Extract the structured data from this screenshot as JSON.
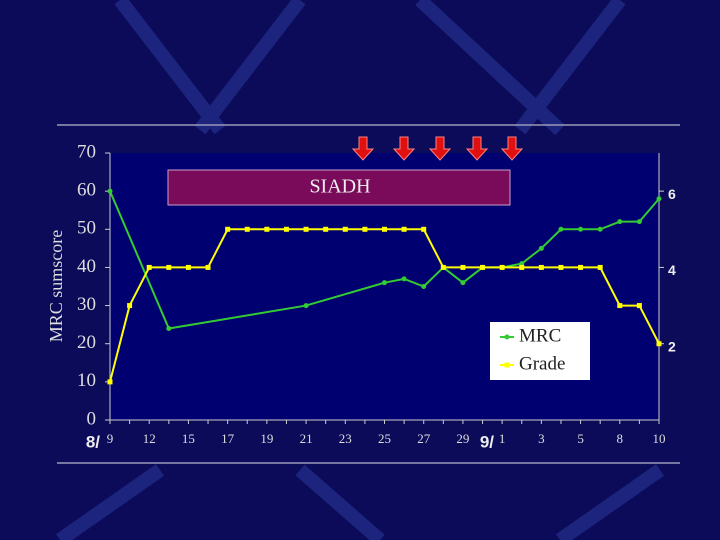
{
  "chart_data": {
    "type": "line",
    "y_label": "MRC sumscore",
    "annotation": "SIADH",
    "month_labels": [
      "8/",
      "9/"
    ],
    "categories": [
      "9",
      null,
      "12",
      null,
      "15",
      null,
      "17",
      null,
      "19",
      null,
      "21",
      null,
      "23",
      null,
      "25",
      null,
      "27",
      null,
      "29",
      null,
      "1",
      null,
      "3",
      null,
      "5",
      null,
      "8",
      null,
      "10"
    ],
    "series": [
      {
        "name": "MRC",
        "color": "#33cc33",
        "marker": "circle",
        "axis": "y",
        "values": [
          60,
          null,
          null,
          24,
          null,
          null,
          null,
          null,
          null,
          null,
          30,
          null,
          null,
          null,
          36,
          37,
          35,
          40,
          36,
          40,
          40,
          41,
          45,
          50,
          50,
          50,
          52,
          52,
          58
        ]
      },
      {
        "name": "Grade",
        "color": "#ffff00",
        "marker": "square",
        "axis": "y2",
        "values": [
          1,
          3,
          4,
          4,
          4,
          4,
          5,
          5,
          5,
          5,
          5,
          5,
          5,
          5,
          5,
          5,
          5,
          4,
          4,
          4,
          4,
          4,
          4,
          4,
          4,
          4,
          3,
          3,
          2
        ]
      }
    ],
    "span_gaps": true,
    "ylim": [
      0,
      70
    ],
    "yticks": [
      0,
      10,
      20,
      30,
      40,
      50,
      60,
      70
    ],
    "y2lim": [
      0,
      7
    ],
    "y2ticks": [
      2,
      4,
      6
    ],
    "legend": "lower right"
  }
}
